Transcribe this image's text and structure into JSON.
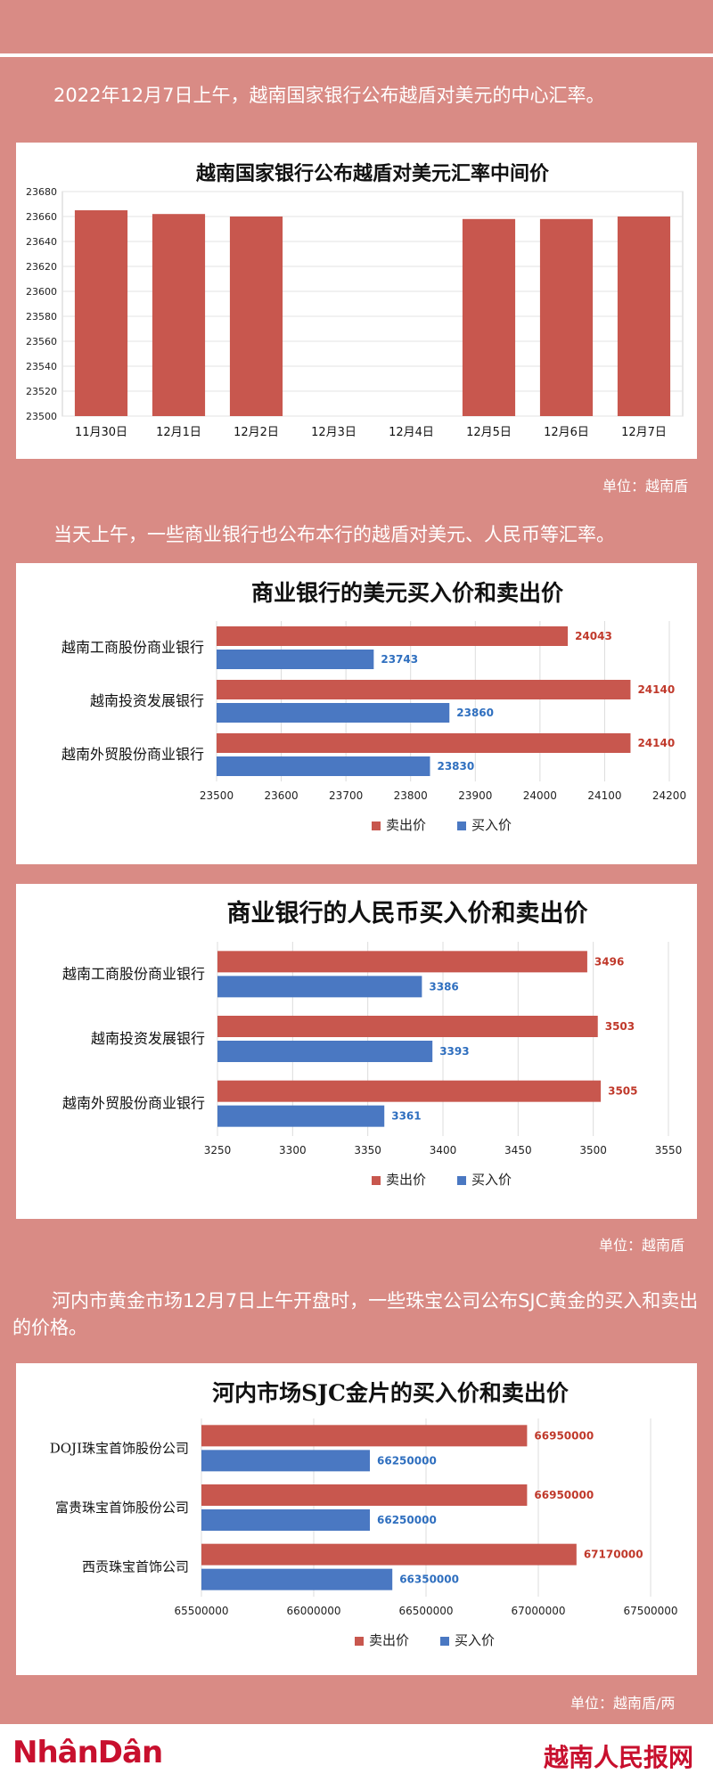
{
  "captions": {
    "c1": "2022年12月7日上午，越南国家银行公布越盾对美元的中心汇率。",
    "c2": "当天上午，一些商业银行也公布本行的越盾对美元、人民币等汇率。",
    "c3": "河内市黄金市场12月7日上午开盘时，一些珠宝公司公布SJC黄金的买入和卖出的价格。"
  },
  "units": {
    "u1": "单位：越南盾",
    "u2": "单位：越南盾",
    "u3": "单位：越南盾/两"
  },
  "legend": {
    "sell": "卖出价",
    "buy": "买入价"
  },
  "colors": {
    "sell": "#c8574e",
    "buy": "#4a78c2",
    "sell_label": "#c0392b",
    "buy_label": "#2f6fbf"
  },
  "footer": {
    "left_logo": "NhânDân",
    "right_logo": "越南人民报网"
  },
  "chart_data": [
    {
      "type": "bar",
      "title": "越南国家银行公布越盾对美元汇率中间价",
      "categories": [
        "11月30日",
        "12月1日",
        "12月2日",
        "12月3日",
        "12月4日",
        "12月5日",
        "12月6日",
        "12月7日"
      ],
      "values": [
        23665,
        23662,
        23660,
        null,
        null,
        23658,
        23658,
        23660
      ],
      "ylim": [
        23500,
        23680
      ],
      "yticks": [
        23500,
        23520,
        23540,
        23560,
        23580,
        23600,
        23620,
        23640,
        23660,
        23680
      ],
      "grid": true
    },
    {
      "type": "bar",
      "orientation": "horizontal",
      "title": "商业银行的美元买入价和卖出价",
      "categories": [
        "越南工商股份商业银行",
        "越南投资发展银行",
        "越南外贸股份商业银行"
      ],
      "series": [
        {
          "name": "卖出价",
          "values": [
            24043,
            24140,
            24140
          ]
        },
        {
          "name": "买入价",
          "values": [
            23743,
            23860,
            23830
          ]
        }
      ],
      "xlim": [
        23500,
        24200
      ],
      "xticks": [
        23500,
        23600,
        23700,
        23800,
        23900,
        24000,
        24100,
        24200
      ],
      "legend": "bottom"
    },
    {
      "type": "bar",
      "orientation": "horizontal",
      "title": "商业银行的人民币买入价和卖出价",
      "categories": [
        "越南工商股份商业银行",
        "越南投资发展银行",
        "越南外贸股份商业银行"
      ],
      "series": [
        {
          "name": "卖出价",
          "values": [
            3496,
            3503,
            3505
          ]
        },
        {
          "name": "买入价",
          "values": [
            3386,
            3393,
            3361
          ]
        }
      ],
      "xlim": [
        3250,
        3550
      ],
      "xticks": [
        3250,
        3300,
        3350,
        3400,
        3450,
        3500,
        3550
      ],
      "legend": "bottom"
    },
    {
      "type": "bar",
      "orientation": "horizontal",
      "title": "河内市场SJC金片的买入价和卖出价",
      "categories": [
        "DOJI珠宝首饰股份公司",
        "富贵珠宝首饰股份公司",
        "西贡珠宝首饰公司"
      ],
      "series": [
        {
          "name": "卖出价",
          "values": [
            66950000,
            66950000,
            67170000
          ]
        },
        {
          "name": "买入价",
          "values": [
            66250000,
            66250000,
            66350000
          ]
        }
      ],
      "xlim": [
        65500000,
        67500000
      ],
      "xticks": [
        65500000,
        66000000,
        66500000,
        67000000,
        67500000
      ],
      "legend": "bottom"
    }
  ]
}
